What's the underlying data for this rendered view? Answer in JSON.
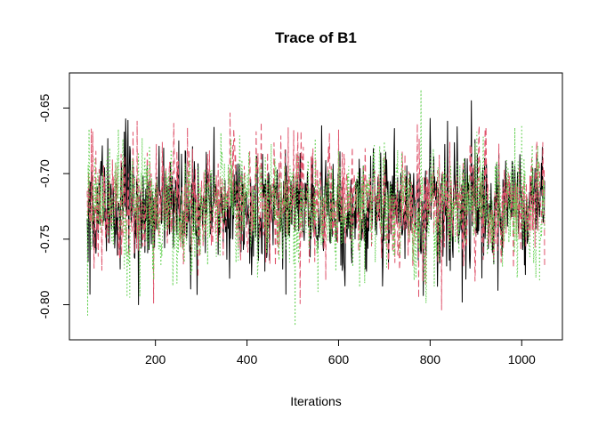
{
  "chart_data": {
    "type": "line",
    "title": "Trace of B1",
    "xlabel": "Iterations",
    "ylabel": "",
    "xlim": [
      51,
      1050
    ],
    "ylim": [
      -0.82,
      -0.63
    ],
    "x_ticks": [
      200,
      400,
      600,
      800,
      1000
    ],
    "x_tick_labels": [
      "200",
      "400",
      "600",
      "800",
      "1000"
    ],
    "y_ticks": [
      -0.65,
      -0.7,
      -0.75,
      -0.8
    ],
    "y_tick_labels": [
      "-0.65",
      "-0.70",
      "-0.75",
      "-0.80"
    ],
    "grid": false,
    "legend": "none",
    "iterations": {
      "start": 51,
      "end": 1050
    },
    "series_summary": {
      "mean": -0.725,
      "sd": 0.022,
      "min": -0.816,
      "max": -0.636
    },
    "series": [
      {
        "color": "#000000",
        "style": "solid",
        "extremes": [
          [
            57,
            -0.792
          ],
          [
            163,
            -0.8
          ],
          [
            485,
            -0.792
          ],
          [
            645,
            -0.689
          ],
          [
            785,
            -0.793
          ],
          [
            838,
            -0.66
          ],
          [
            870,
            -0.798
          ],
          [
            948,
            -0.789
          ],
          [
            1045,
            -0.68
          ]
        ]
      },
      {
        "color": "#DF536B",
        "style": "dashed",
        "extremes": [
          [
            60,
            -0.666
          ],
          [
            160,
            -0.66
          ],
          [
            270,
            -0.665
          ],
          [
            420,
            -0.668
          ],
          [
            490,
            -0.665
          ],
          [
            775,
            -0.795
          ],
          [
            825,
            -0.804
          ],
          [
            1050,
            -0.77
          ]
        ]
      },
      {
        "color": "#61D04F",
        "style": "dotted",
        "extremes": [
          [
            52,
            -0.808
          ],
          [
            55,
            -0.666
          ],
          [
            505,
            -0.816
          ],
          [
            780,
            -0.636
          ],
          [
            985,
            -0.665
          ],
          [
            1000,
            -0.663
          ]
        ]
      }
    ]
  }
}
